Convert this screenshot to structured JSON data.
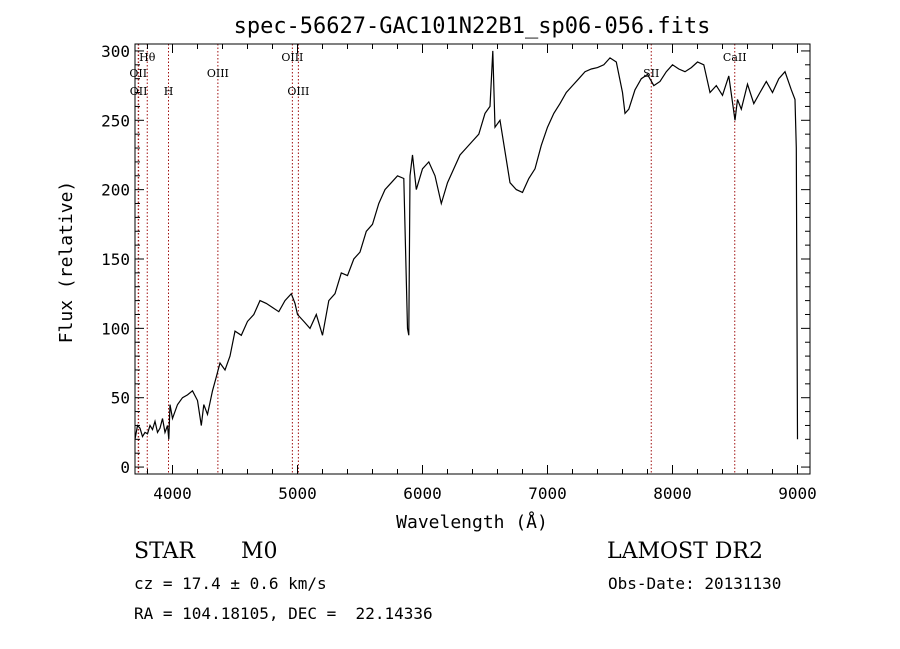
{
  "chart_data": {
    "type": "line",
    "title": "spec-56627-GAC101N22B1_sp06-056.fits",
    "xlabel": "Wavelength (Å)",
    "ylabel": "Flux (relative)",
    "xlim": [
      3700,
      9100
    ],
    "ylim": [
      -5,
      305
    ],
    "x_ticks": [
      4000,
      5000,
      6000,
      7000,
      8000,
      9000
    ],
    "y_ticks": [
      0,
      50,
      100,
      150,
      200,
      250,
      300
    ],
    "series": [
      {
        "color": "#000000",
        "x": [
          3700,
          3720,
          3740,
          3760,
          3780,
          3800,
          3820,
          3840,
          3860,
          3880,
          3900,
          3920,
          3940,
          3960,
          3970,
          3980,
          4000,
          4040,
          4080,
          4120,
          4160,
          4200,
          4230,
          4250,
          4280,
          4320,
          4350,
          4380,
          4420,
          4460,
          4500,
          4550,
          4600,
          4650,
          4700,
          4750,
          4800,
          4850,
          4900,
          4950,
          4980,
          5000,
          5050,
          5100,
          5150,
          5200,
          5250,
          5300,
          5350,
          5400,
          5450,
          5500,
          5550,
          5600,
          5650,
          5700,
          5750,
          5800,
          5850,
          5880,
          5890,
          5900,
          5920,
          5950,
          6000,
          6050,
          6100,
          6150,
          6200,
          6250,
          6300,
          6350,
          6400,
          6450,
          6500,
          6540,
          6562,
          6580,
          6620,
          6700,
          6750,
          6800,
          6850,
          6900,
          6950,
          7000,
          7050,
          7100,
          7150,
          7200,
          7250,
          7300,
          7350,
          7400,
          7450,
          7500,
          7550,
          7600,
          7620,
          7650,
          7700,
          7750,
          7800,
          7850,
          7900,
          7950,
          8000,
          8050,
          8100,
          8150,
          8200,
          8250,
          8300,
          8350,
          8400,
          8450,
          8500,
          8520,
          8550,
          8600,
          8650,
          8700,
          8750,
          8800,
          8850,
          8900,
          8950,
          8980,
          8990,
          9000
        ],
        "y": [
          20,
          30,
          28,
          22,
          25,
          24,
          30,
          27,
          33,
          25,
          28,
          35,
          25,
          30,
          20,
          45,
          35,
          45,
          50,
          52,
          55,
          48,
          30,
          45,
          38,
          55,
          65,
          75,
          70,
          80,
          98,
          95,
          105,
          110,
          120,
          118,
          115,
          112,
          120,
          125,
          118,
          110,
          105,
          100,
          110,
          95,
          120,
          125,
          140,
          138,
          150,
          155,
          170,
          175,
          190,
          200,
          205,
          210,
          208,
          100,
          95,
          210,
          225,
          200,
          215,
          220,
          210,
          190,
          205,
          215,
          225,
          230,
          235,
          240,
          255,
          260,
          300,
          245,
          250,
          205,
          200,
          198,
          208,
          215,
          232,
          245,
          255,
          262,
          270,
          275,
          280,
          285,
          287,
          288,
          290,
          295,
          292,
          270,
          255,
          258,
          272,
          280,
          283,
          275,
          278,
          285,
          290,
          287,
          285,
          288,
          292,
          290,
          270,
          275,
          268,
          282,
          250,
          265,
          258,
          276,
          262,
          270,
          278,
          270,
          280,
          285,
          272,
          265,
          230,
          20
        ]
      }
    ],
    "line_markers": [
      {
        "label": "Hθ",
        "x": 3798,
        "row": 1
      },
      {
        "label": "OII",
        "x": 3726,
        "row": 2
      },
      {
        "label": "OII",
        "x": 3729,
        "row": 3
      },
      {
        "label": "H",
        "x": 3968,
        "row": 3
      },
      {
        "label": "OIII",
        "x": 4363,
        "row": 2
      },
      {
        "label": "OIII",
        "x": 4959,
        "row": 1
      },
      {
        "label": "OIII",
        "x": 5007,
        "row": 3
      },
      {
        "label": "SII",
        "x": 7830,
        "row": 2
      },
      {
        "label": "CaII",
        "x": 8498,
        "row": 1
      }
    ]
  },
  "info": {
    "object_class": "STAR",
    "subclass": "M0",
    "survey": "LAMOST DR2",
    "redshift": "cz = 17.4 ± 0.6 km/s",
    "obs_date": "Obs-Date: 20131130",
    "coordinates": "RA = 104.18105, DEC =  22.14336"
  }
}
